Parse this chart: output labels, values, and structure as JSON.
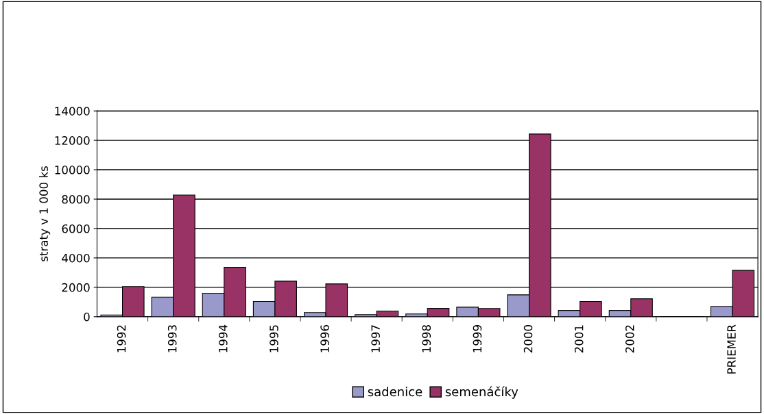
{
  "chart_data": {
    "type": "bar",
    "ylabel": "straty v 1 000 ks",
    "categories": [
      "1992",
      "1993",
      "1994",
      "1995",
      "1996",
      "1997",
      "1998",
      "1999",
      "2000",
      "2001",
      "2002",
      null,
      "PRIEMER"
    ],
    "series": [
      {
        "name": "sadenice",
        "color": "#9999cc",
        "values": [
          120,
          1330,
          1600,
          1040,
          280,
          140,
          190,
          650,
          1490,
          430,
          430,
          null,
          700
        ]
      },
      {
        "name": "semenáčíky",
        "color": "#993366",
        "values": [
          2050,
          8280,
          3360,
          2420,
          2230,
          390,
          570,
          560,
          12430,
          1040,
          1220,
          null,
          3150
        ]
      }
    ],
    "ylim": [
      0,
      14000
    ],
    "yticks": [
      0,
      2000,
      4000,
      6000,
      8000,
      10000,
      12000,
      14000
    ],
    "grid": "y",
    "legend": "bottom"
  }
}
